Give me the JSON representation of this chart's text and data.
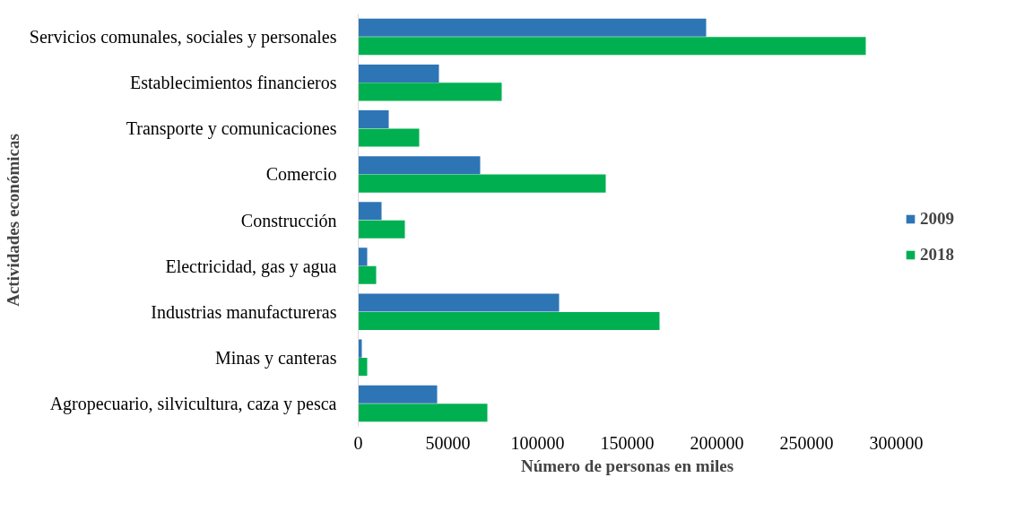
{
  "chart_data": {
    "type": "bar",
    "orientation": "horizontal",
    "xlabel": "Número de personas en miles",
    "ylabel": "Actividades económicas",
    "categories": [
      "Servicios comunales, sociales y personales",
      "Establecimientos financieros",
      "Transporte y comunicaciones",
      "Comercio",
      "Construcción",
      "Electricidad, gas y agua",
      "Industrias manufactureras",
      "Minas y canteras",
      "Agropecuario, silvicultura, caza y pesca"
    ],
    "series": [
      {
        "name": "2009",
        "color": "#2e75b6",
        "values": [
          194000,
          45000,
          17000,
          68000,
          13000,
          5000,
          112000,
          2000,
          44000
        ]
      },
      {
        "name": "2018",
        "color": "#00b050",
        "values": [
          283000,
          80000,
          34000,
          138000,
          26000,
          10000,
          168000,
          5000,
          72000
        ]
      }
    ],
    "xlim": [
      0,
      300000
    ],
    "xticks": [
      0,
      50000,
      100000,
      150000,
      200000,
      250000,
      300000
    ],
    "grid": false,
    "legend": "right"
  }
}
